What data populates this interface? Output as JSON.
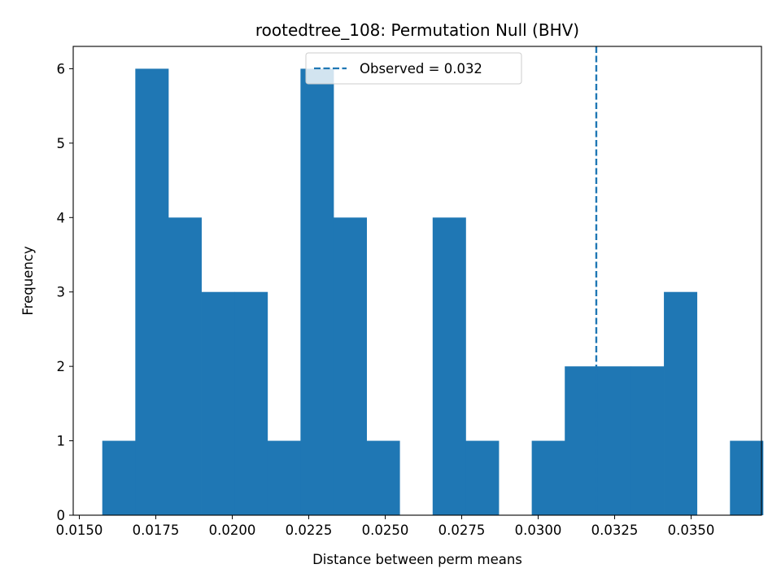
{
  "chart_data": {
    "type": "bar",
    "title": "rootedtree_108: Permutation Null (BHV)",
    "xlabel": "Distance between perm means",
    "ylabel": "Frequency",
    "xlim": [
      0.0148,
      0.0373
    ],
    "ylim": [
      0,
      6.3
    ],
    "xticks": [
      0.015,
      0.0175,
      0.02,
      0.0225,
      0.025,
      0.0275,
      0.03,
      0.0325,
      0.035
    ],
    "xtick_labels": [
      "0.0150",
      "0.0175",
      "0.0200",
      "0.0225",
      "0.0250",
      "0.0275",
      "0.0300",
      "0.0325",
      "0.0350"
    ],
    "yticks": [
      0,
      1,
      2,
      3,
      4,
      5,
      6
    ],
    "ytick_labels": [
      "0",
      "1",
      "2",
      "3",
      "4",
      "5",
      "6"
    ],
    "bin_width": 0.00108,
    "bins": [
      {
        "start": 0.01575,
        "count": 1
      },
      {
        "start": 0.01683,
        "count": 6
      },
      {
        "start": 0.01791,
        "count": 4
      },
      {
        "start": 0.01899,
        "count": 3
      },
      {
        "start": 0.02007,
        "count": 3
      },
      {
        "start": 0.02115,
        "count": 1
      },
      {
        "start": 0.02223,
        "count": 6
      },
      {
        "start": 0.02331,
        "count": 4
      },
      {
        "start": 0.02439,
        "count": 1
      },
      {
        "start": 0.02547,
        "count": 0
      },
      {
        "start": 0.02655,
        "count": 4
      },
      {
        "start": 0.02763,
        "count": 1
      },
      {
        "start": 0.02871,
        "count": 0
      },
      {
        "start": 0.02979,
        "count": 1
      },
      {
        "start": 0.03087,
        "count": 2
      },
      {
        "start": 0.03195,
        "count": 2
      },
      {
        "start": 0.03303,
        "count": 2
      },
      {
        "start": 0.03411,
        "count": 3
      },
      {
        "start": 0.03519,
        "count": 0
      },
      {
        "start": 0.03627,
        "count": 1
      }
    ],
    "observed": {
      "value": 0.0319,
      "label": "Observed = 0.032",
      "color": "#1f77b4",
      "style": "dashed"
    },
    "bar_color": "#1f77b4",
    "legend_position": "upper center",
    "grid": false
  }
}
